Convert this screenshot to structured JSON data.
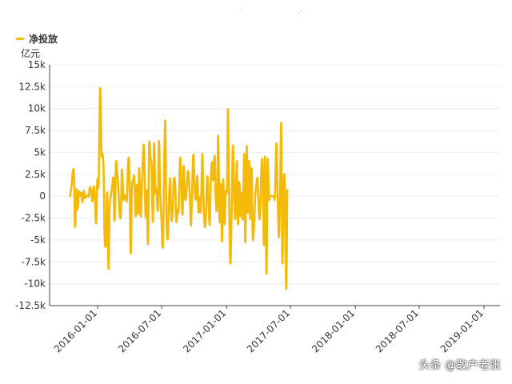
{
  "chart_data": {
    "type": "line",
    "legend": {
      "position": "top-left"
    },
    "ylabel": "亿元",
    "ylim": [
      -12500,
      15000
    ],
    "yticks": [
      -12500,
      -10000,
      -7500,
      -5000,
      -2500,
      0,
      2500,
      5000,
      7500,
      10000,
      12500,
      15000
    ],
    "ytick_labels": [
      "-12.5k",
      "-10k",
      "-7.5k",
      "-5k",
      "-2.5k",
      "0",
      "2.5k",
      "5k",
      "7.5k",
      "10k",
      "12.5k",
      "15k"
    ],
    "xtick_labels": [
      "2016-01-01",
      "2016-07-01",
      "2017-01-01",
      "2017-07-01",
      "2018-01-01",
      "2018-07-01",
      "2019-01-01"
    ],
    "grid": true,
    "series": [
      {
        "name": "净投放",
        "color": "#F5B90A",
        "points": [
          [
            "2015-10-15",
            0
          ],
          [
            "2015-10-19",
            1200
          ],
          [
            "2015-10-22",
            2600
          ],
          [
            "2015-10-26",
            2600
          ],
          [
            "2015-10-29",
            -3500
          ],
          [
            "2015-11-02",
            800
          ],
          [
            "2015-11-05",
            -1500
          ],
          [
            "2015-11-09",
            500
          ],
          [
            "2015-11-12",
            0
          ],
          [
            "2015-11-16",
            400
          ],
          [
            "2015-11-19",
            -700
          ],
          [
            "2015-11-23",
            600
          ],
          [
            "2015-11-26",
            -200
          ],
          [
            "2015-11-30",
            0
          ],
          [
            "2015-12-03",
            100
          ],
          [
            "2015-12-07",
            0
          ],
          [
            "2015-12-10",
            1000
          ],
          [
            "2015-12-14",
            600
          ],
          [
            "2015-12-17",
            -600
          ],
          [
            "2015-12-21",
            1100
          ],
          [
            "2015-12-24",
            0
          ],
          [
            "2015-12-28",
            -3100
          ],
          [
            "2015-12-31",
            1800
          ],
          [
            "2016-01-04",
            1500
          ],
          [
            "2016-01-08",
            12300
          ],
          [
            "2016-01-12",
            5000
          ],
          [
            "2016-01-15",
            4800
          ],
          [
            "2016-01-18",
            3000
          ],
          [
            "2016-01-21",
            -4700
          ],
          [
            "2016-01-25",
            -5200
          ],
          [
            "2016-01-28",
            400
          ],
          [
            "2016-02-01",
            -8300
          ],
          [
            "2016-02-04",
            -1500
          ],
          [
            "2016-02-08",
            100
          ],
          [
            "2016-02-12",
            1300
          ],
          [
            "2016-02-15",
            1900
          ],
          [
            "2016-02-18",
            -2800
          ],
          [
            "2016-02-22",
            3600
          ],
          [
            "2016-02-25",
            3000
          ],
          [
            "2016-03-01",
            0
          ],
          [
            "2016-03-04",
            -2200
          ],
          [
            "2016-03-07",
            -2000
          ],
          [
            "2016-03-10",
            3000
          ],
          [
            "2016-03-14",
            -300
          ],
          [
            "2016-03-17",
            100
          ],
          [
            "2016-03-21",
            0
          ],
          [
            "2016-03-24",
            -400
          ],
          [
            "2016-03-28",
            4100
          ],
          [
            "2016-03-31",
            2800
          ],
          [
            "2016-04-04",
            -6500
          ],
          [
            "2016-04-07",
            800
          ],
          [
            "2016-04-11",
            1700
          ],
          [
            "2016-04-14",
            2100
          ],
          [
            "2016-04-18",
            -2300
          ],
          [
            "2016-04-21",
            1300
          ],
          [
            "2016-04-25",
            -2000
          ],
          [
            "2016-04-28",
            3200
          ],
          [
            "2016-05-02",
            -2200
          ],
          [
            "2016-05-05",
            0
          ],
          [
            "2016-05-09",
            4900
          ],
          [
            "2016-05-12",
            5200
          ],
          [
            "2016-05-16",
            -2300
          ],
          [
            "2016-05-19",
            600
          ],
          [
            "2016-05-23",
            -5400
          ],
          [
            "2016-05-26",
            5700
          ],
          [
            "2016-05-30",
            4400
          ],
          [
            "2016-06-02",
            3300
          ],
          [
            "2016-06-06",
            -2900
          ],
          [
            "2016-06-09",
            6000
          ],
          [
            "2016-06-13",
            600
          ],
          [
            "2016-06-16",
            800
          ],
          [
            "2016-06-20",
            -1500
          ],
          [
            "2016-06-23",
            6300
          ],
          [
            "2016-06-27",
            -100
          ],
          [
            "2016-06-30",
            -2500
          ],
          [
            "2016-07-04",
            -5800
          ],
          [
            "2016-07-07",
            1300
          ],
          [
            "2016-07-11",
            8600
          ],
          [
            "2016-07-14",
            -2100
          ],
          [
            "2016-07-18",
            -4900
          ],
          [
            "2016-07-21",
            -800
          ],
          [
            "2016-07-25",
            2000
          ],
          [
            "2016-07-28",
            -2700
          ],
          [
            "2016-08-01",
            -1500
          ],
          [
            "2016-08-04",
            1800
          ],
          [
            "2016-08-08",
            1400
          ],
          [
            "2016-08-11",
            -2900
          ],
          [
            "2016-08-15",
            -1500
          ],
          [
            "2016-08-18",
            -1500
          ],
          [
            "2016-08-22",
            4300
          ],
          [
            "2016-08-25",
            1900
          ],
          [
            "2016-08-29",
            -2100
          ],
          [
            "2016-09-01",
            3400
          ],
          [
            "2016-09-05",
            -100
          ],
          [
            "2016-09-08",
            -100
          ],
          [
            "2016-09-12",
            2400
          ],
          [
            "2016-09-15",
            2600
          ],
          [
            "2016-09-19",
            -500
          ],
          [
            "2016-09-22",
            -3300
          ],
          [
            "2016-09-26",
            2000
          ],
          [
            "2016-09-29",
            4700
          ],
          [
            "2016-10-03",
            300
          ],
          [
            "2016-10-06",
            -200
          ],
          [
            "2016-10-10",
            2300
          ],
          [
            "2016-10-13",
            -1800
          ],
          [
            "2016-10-17",
            -100
          ],
          [
            "2016-10-20",
            -1700
          ],
          [
            "2016-10-24",
            4800
          ],
          [
            "2016-10-27",
            0
          ],
          [
            "2016-10-31",
            -3400
          ],
          [
            "2016-11-03",
            -2400
          ],
          [
            "2016-11-07",
            2200
          ],
          [
            "2016-11-10",
            0
          ],
          [
            "2016-11-14",
            -3300
          ],
          [
            "2016-11-17",
            1800
          ],
          [
            "2016-11-21",
            3900
          ],
          [
            "2016-11-24",
            1800
          ],
          [
            "2016-11-28",
            4600
          ],
          [
            "2016-12-01",
            -300
          ],
          [
            "2016-12-05",
            -1200
          ],
          [
            "2016-12-08",
            6900
          ],
          [
            "2016-12-12",
            -2900
          ],
          [
            "2016-12-15",
            1400
          ],
          [
            "2016-12-19",
            -5200
          ],
          [
            "2016-12-22",
            1900
          ],
          [
            "2016-12-26",
            -3200
          ],
          [
            "2016-12-29",
            400
          ],
          [
            "2017-01-02",
            1000
          ],
          [
            "2017-01-05",
            9900
          ],
          [
            "2017-01-09",
            -3300
          ],
          [
            "2017-01-12",
            -7600
          ],
          [
            "2017-01-16",
            0
          ],
          [
            "2017-01-19",
            5800
          ],
          [
            "2017-01-23",
            -800
          ],
          [
            "2017-01-26",
            -2300
          ],
          [
            "2017-01-30",
            4000
          ],
          [
            "2017-02-02",
            -3200
          ],
          [
            "2017-02-06",
            1600
          ],
          [
            "2017-02-09",
            -2300
          ],
          [
            "2017-02-13",
            400
          ],
          [
            "2017-02-16",
            -2600
          ],
          [
            "2017-02-20",
            4800
          ],
          [
            "2017-02-23",
            -5300
          ],
          [
            "2017-02-27",
            5700
          ],
          [
            "2017-03-02",
            -1900
          ],
          [
            "2017-03-06",
            4000
          ],
          [
            "2017-03-09",
            -2600
          ],
          [
            "2017-03-13",
            3200
          ],
          [
            "2017-03-16",
            -4700
          ],
          [
            "2017-03-20",
            -3200
          ],
          [
            "2017-03-23",
            -100
          ],
          [
            "2017-03-27",
            1600
          ],
          [
            "2017-03-30",
            1800
          ],
          [
            "2017-04-03",
            -2200
          ],
          [
            "2017-04-06",
            -1900
          ],
          [
            "2017-04-10",
            3400
          ],
          [
            "2017-04-13",
            3300
          ],
          [
            "2017-04-17",
            -5600
          ],
          [
            "2017-04-20",
            4500
          ],
          [
            "2017-04-24",
            -8900
          ],
          [
            "2017-04-27",
            4000
          ],
          [
            "2017-05-01",
            -200
          ],
          [
            "2017-05-04",
            0
          ],
          [
            "2017-05-08",
            0
          ],
          [
            "2017-05-11",
            0
          ],
          [
            "2017-05-15",
            0
          ],
          [
            "2017-05-18",
            0
          ],
          [
            "2017-05-22",
            6000
          ],
          [
            "2017-05-25",
            1500
          ],
          [
            "2017-05-29",
            -4600
          ],
          [
            "2017-06-01",
            -1400
          ],
          [
            "2017-06-05",
            8300
          ],
          [
            "2017-06-08",
            -7600
          ],
          [
            "2017-06-12",
            1500
          ],
          [
            "2017-06-15",
            900
          ],
          [
            "2017-06-19",
            -10600
          ],
          [
            "2017-06-22",
            700
          ]
        ]
      }
    ]
  },
  "watermark": "头条 @散户老张"
}
